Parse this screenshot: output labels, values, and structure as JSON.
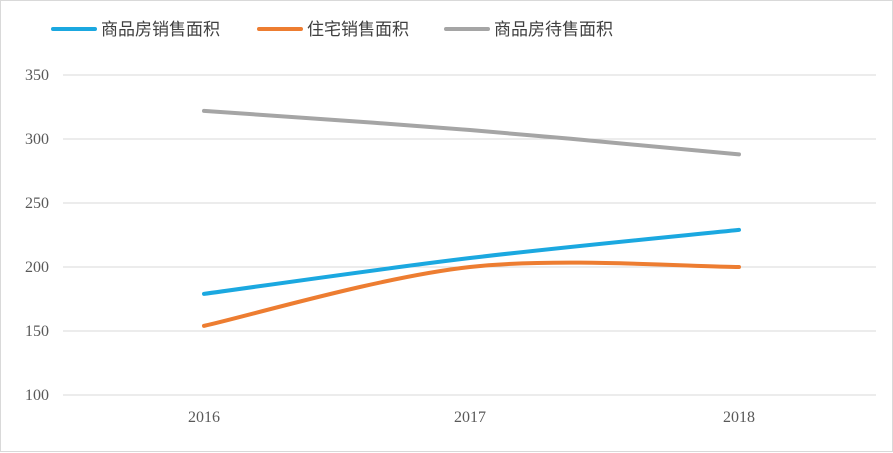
{
  "chart_data": {
    "type": "line",
    "title": "",
    "xlabel": "",
    "ylabel": "",
    "categories": [
      "2016",
      "2017",
      "2018"
    ],
    "ylim": [
      100,
      350
    ],
    "yticks": [
      100,
      150,
      200,
      250,
      300,
      350
    ],
    "grid": true,
    "legend_position": "top-left",
    "smooth": true,
    "series": [
      {
        "name": "商品房销售面积",
        "values": [
          179,
          207,
          229
        ],
        "color": "#1ba8e0"
      },
      {
        "name": "住宅销售面积",
        "values": [
          154,
          200,
          200
        ],
        "color": "#ed7d31"
      },
      {
        "name": "商品房待售面积",
        "values": [
          322,
          307,
          288
        ],
        "color": "#a5a5a5"
      }
    ]
  }
}
